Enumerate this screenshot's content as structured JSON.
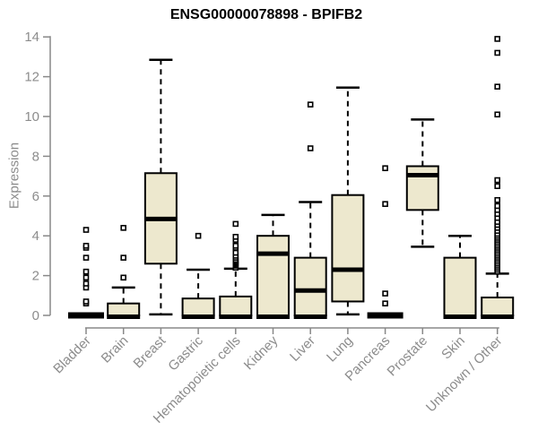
{
  "chart_data": {
    "type": "boxplot",
    "title": "ENSG00000078898 - BPIFB2",
    "ylabel": "Expression",
    "xlabel": "",
    "ylim": [
      0,
      14
    ],
    "yticks": [
      0,
      2,
      4,
      6,
      8,
      10,
      12,
      14
    ],
    "grid": false,
    "legend": "none",
    "colors": {
      "box_fill": "#EDE8CE",
      "box_stroke": "#000000",
      "median": "#000000",
      "axis_line": "#888888",
      "tick_label": "#8C8C8C",
      "title_text": "#000000",
      "outlier_fill": "#FFFFFF",
      "background": "#FFFFFF"
    },
    "categories": [
      "Bladder",
      "Brain",
      "Breast",
      "Gastric",
      "Hematopoietic cells",
      "Kidney",
      "Liver",
      "Lung",
      "Pancreas",
      "Prostate",
      "Skin",
      "Unknown / Other"
    ],
    "series": [
      {
        "category": "Bladder",
        "low": 0,
        "q1": 0,
        "median": 0,
        "q3": 0,
        "high": 0,
        "outliers": [
          0.6,
          0.7,
          1.4,
          1.6,
          1.9,
          2.2,
          2.9,
          3.4,
          3.5,
          4.3
        ]
      },
      {
        "category": "Brain",
        "low": 0,
        "q1": 0,
        "median": 0,
        "q3": 0.6,
        "high": 1.4,
        "outliers": [
          1.9,
          2.9,
          4.4
        ]
      },
      {
        "category": "Breast",
        "low": 0.05,
        "q1": 2.6,
        "median": 4.85,
        "q3": 7.15,
        "high": 12.85,
        "outliers": []
      },
      {
        "category": "Gastric",
        "low": 0,
        "q1": 0,
        "median": 0,
        "q3": 0.85,
        "high": 2.3,
        "outliers": [
          4.0
        ]
      },
      {
        "category": "Hematopoietic cells",
        "low": 0,
        "q1": 0,
        "median": 0,
        "q3": 0.95,
        "high": 2.35,
        "outliers": [
          2.4,
          2.5,
          2.55,
          2.6,
          2.65,
          2.7,
          2.75,
          2.8,
          2.9,
          3.0,
          3.15,
          3.4,
          3.5,
          3.8,
          3.95,
          4.6
        ]
      },
      {
        "category": "Kidney",
        "low": 0,
        "q1": 0,
        "median": 3.1,
        "q3": 4.0,
        "high": 5.05,
        "outliers": []
      },
      {
        "category": "Liver",
        "low": 0,
        "q1": 0,
        "median": 1.25,
        "q3": 2.9,
        "high": 5.7,
        "outliers": [
          8.4,
          10.6
        ]
      },
      {
        "category": "Lung",
        "low": 0.05,
        "q1": 0.7,
        "median": 2.3,
        "q3": 6.05,
        "high": 11.45,
        "outliers": []
      },
      {
        "category": "Pancreas",
        "low": 0,
        "q1": 0,
        "median": 0,
        "q3": 0,
        "high": 0,
        "outliers": [
          0.6,
          1.1,
          5.6,
          7.4
        ]
      },
      {
        "category": "Prostate",
        "low": 3.45,
        "q1": 5.3,
        "median": 7.05,
        "q3": 7.5,
        "high": 9.85,
        "outliers": []
      },
      {
        "category": "Skin",
        "low": 0,
        "q1": 0,
        "median": 0,
        "q3": 2.9,
        "high": 4.0,
        "outliers": []
      },
      {
        "category": "Unknown / Other",
        "low": 0,
        "q1": 0,
        "median": 0,
        "q3": 0.9,
        "high": 2.1,
        "outliers": [
          2.2,
          2.3,
          2.4,
          2.5,
          2.6,
          2.7,
          2.8,
          2.9,
          3.0,
          3.1,
          3.2,
          3.3,
          3.4,
          3.5,
          3.6,
          3.7,
          3.8,
          3.9,
          4.0,
          4.1,
          4.25,
          4.4,
          4.55,
          4.7,
          4.9,
          5.1,
          5.3,
          5.5,
          5.8,
          6.5,
          6.8,
          10.1,
          11.5,
          13.2,
          13.9
        ]
      }
    ]
  }
}
